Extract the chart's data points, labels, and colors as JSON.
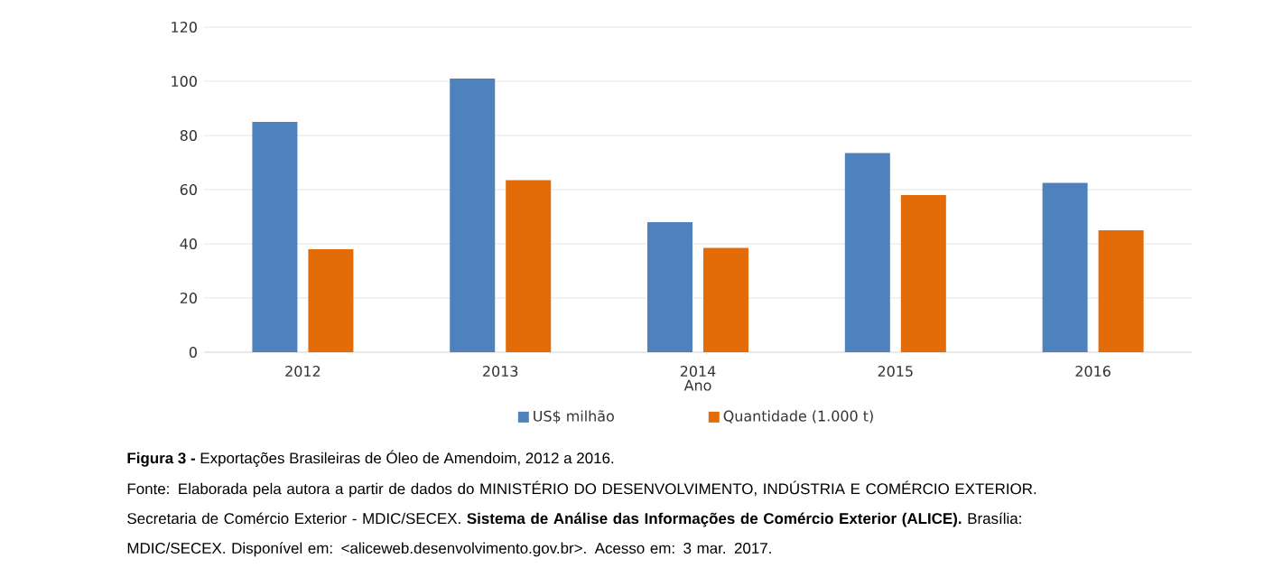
{
  "chart_data": {
    "type": "bar",
    "title": "**Figura 3 -** Exportações Brasileiras de Óleo de Amendoim, 2012 a 2016.",
    "xlabel": "Ano",
    "categories": [
      "2012",
      "2013",
      "2014",
      "2015",
      "2016"
    ],
    "series": [
      {
        "name": "US$ milhão",
        "color": "#4f81bd",
        "values": [
          85,
          101,
          48,
          73.5,
          62.5
        ]
      },
      {
        "name": "Quantidade (1.000 t)",
        "color": "#e36c09",
        "values": [
          38,
          63.5,
          38.5,
          58,
          45
        ]
      }
    ],
    "ylim": [
      0,
      120
    ],
    "yticks": [
      0,
      20,
      40,
      60,
      80,
      100,
      120
    ],
    "grid": "y",
    "legend": "bottom",
    "annotations": [
      "Fonte: Elaborada pela autora a partir de dados do MINISTÉRIO DO DESENVOLVIMENTO, INDÚSTRIA E COMÉRCIO EXTERIOR. Secretaria de Comércio Exterior - MDIC/SECEX. **Sistema de Análise das Informações de Comércio Exterior (ALICE).** Brasília: MDIC/SECEX. Disponível em: <aliceweb.desenvolvimento.gov.br>. Acesso em: 3 mar. 2017."
    ]
  }
}
